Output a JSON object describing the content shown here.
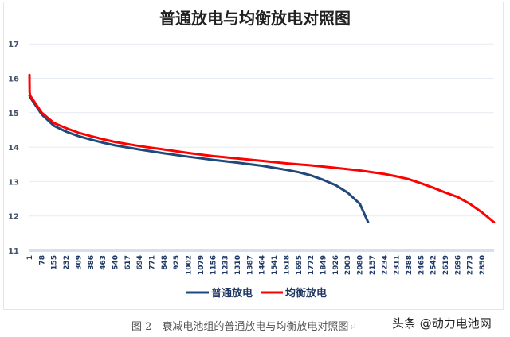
{
  "chart_data": {
    "type": "line",
    "title": "普通放电与均衡放电对照图",
    "xlabel": "",
    "ylabel": "",
    "ylim": [
      11,
      17
    ],
    "yticks": [
      "11",
      "12",
      "13",
      "14",
      "15",
      "16",
      "17"
    ],
    "xticks": [
      "1",
      "78",
      "155",
      "232",
      "309",
      "386",
      "463",
      "540",
      "617",
      "694",
      "771",
      "848",
      "925",
      "1002",
      "1079",
      "1156",
      "1233",
      "1310",
      "1387",
      "1464",
      "1541",
      "1618",
      "1695",
      "1772",
      "1849",
      "1926",
      "2003",
      "2080",
      "2157",
      "2234",
      "2311",
      "2388",
      "2465",
      "2542",
      "2619",
      "2696",
      "2773",
      "2850"
    ],
    "grid": true,
    "legend_position": "bottom",
    "series": [
      {
        "name": "普通放电",
        "color": "#1f497d",
        "x": [
          1,
          5,
          78,
          155,
          232,
          309,
          386,
          463,
          540,
          694,
          848,
          1002,
          1156,
          1310,
          1464,
          1541,
          1618,
          1695,
          1772,
          1849,
          1926,
          2003,
          2080,
          2132
        ],
        "y": [
          15.5,
          15.45,
          14.95,
          14.62,
          14.45,
          14.32,
          14.22,
          14.13,
          14.05,
          13.93,
          13.82,
          13.72,
          13.63,
          13.55,
          13.46,
          13.4,
          13.34,
          13.27,
          13.18,
          13.05,
          12.9,
          12.68,
          12.35,
          11.82
        ]
      },
      {
        "name": "均衡放电",
        "color": "#ff0000",
        "x": [
          1,
          2,
          5,
          78,
          155,
          232,
          309,
          386,
          463,
          540,
          694,
          848,
          1002,
          1156,
          1310,
          1464,
          1618,
          1772,
          1926,
          2080,
          2234,
          2311,
          2388,
          2465,
          2542,
          2619,
          2696,
          2773,
          2850,
          2924
        ],
        "y": [
          16.1,
          15.6,
          15.5,
          15.0,
          14.7,
          14.55,
          14.42,
          14.32,
          14.23,
          14.15,
          14.03,
          13.93,
          13.83,
          13.74,
          13.67,
          13.6,
          13.53,
          13.47,
          13.4,
          13.32,
          13.22,
          13.15,
          13.07,
          12.95,
          12.82,
          12.68,
          12.55,
          12.35,
          12.1,
          11.82
        ]
      }
    ]
  },
  "caption": "图 2　衰减电池组的普通放电与均衡放电对照图↵",
  "watermark": "头条 @动力电池网"
}
